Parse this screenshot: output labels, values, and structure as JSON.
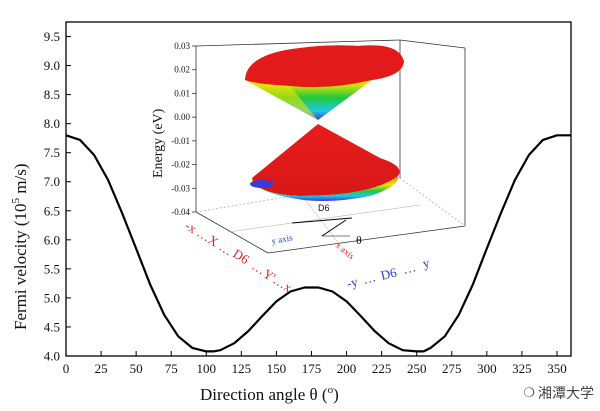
{
  "chart_data": {
    "type": "line",
    "title": "",
    "xlabel": "Direction angle θ (",
    "xlabel_unit": "o",
    "xlabel_close": ")",
    "ylabel": "Fermi velocity (10",
    "ylabel_sup": "5",
    "ylabel_unit": " m/s)",
    "xlim": [
      0,
      360
    ],
    "ylim": [
      4.0,
      9.75
    ],
    "xticks": [
      "0",
      "25",
      "50",
      "75",
      "100",
      "125",
      "150",
      "175",
      "200",
      "225",
      "250",
      "275",
      "300",
      "325",
      "350"
    ],
    "yticks": [
      "4.0",
      "4.5",
      "5.0",
      "5.5",
      "6.0",
      "6.5",
      "7.0",
      "7.5",
      "8.0",
      "8.5",
      "9.0",
      "9.5"
    ],
    "series": [
      {
        "name": "Fermi velocity",
        "x": [
          0,
          10,
          20,
          30,
          40,
          50,
          60,
          70,
          80,
          90,
          100,
          105,
          110,
          120,
          130,
          140,
          150,
          160,
          170,
          180,
          190,
          200,
          210,
          220,
          230,
          240,
          250,
          255,
          260,
          270,
          280,
          290,
          300,
          310,
          320,
          330,
          340,
          350,
          360
        ],
        "y": [
          7.8,
          7.72,
          7.46,
          7.03,
          6.46,
          5.85,
          5.23,
          4.71,
          4.34,
          4.14,
          4.08,
          4.08,
          4.1,
          4.22,
          4.43,
          4.69,
          4.94,
          5.11,
          5.18,
          5.18,
          5.11,
          4.94,
          4.69,
          4.43,
          4.22,
          4.1,
          4.08,
          4.08,
          4.14,
          4.34,
          4.71,
          5.23,
          5.85,
          6.46,
          7.03,
          7.46,
          7.72,
          7.8,
          7.8
        ]
      }
    ],
    "inset": {
      "type": "3d-surface",
      "zlabel": "Energy (eV)",
      "zticks": [
        "0.03",
        "0.02",
        "0.01",
        "0.00",
        "-0.01",
        "-0.02",
        "-0.03",
        "-0.04"
      ],
      "zlim": [
        -0.04,
        0.03
      ],
      "d6_label": "D6",
      "theta_label": "θ",
      "y_axis_label": "y axis",
      "x_axis_label": "x axis",
      "red_axis_labels": [
        "-x",
        "X",
        "D6",
        "Y'",
        "x"
      ],
      "blue_axis_labels": [
        "-y",
        "D6",
        "y"
      ],
      "colors": {
        "top": "#e81c1c",
        "mid": "#f2e600",
        "low": "#23c83c",
        "cyan": "#1ec8e6",
        "bottom": "#3a3ad8"
      }
    }
  },
  "watermark": {
    "text": "湘潭大学",
    "icon": "wechat-icon"
  }
}
